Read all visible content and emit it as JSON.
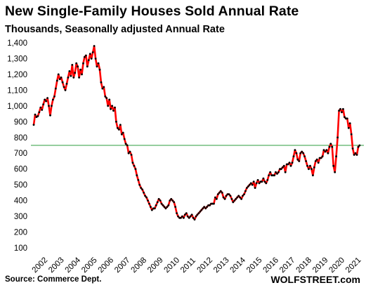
{
  "header": {
    "title": "New Single-Family Houses Sold Annual Rate",
    "subtitle": "Thousands, Seasonally adjusted Annual Rate"
  },
  "footer": {
    "source": "Source: Commerce Dept.",
    "brand": "WOLFSTREET.com"
  },
  "colors": {
    "line": "#ff0000",
    "marker": "#000000",
    "reference_line": "#2e9e3e",
    "background": "#ffffff"
  },
  "chart_data": {
    "type": "line",
    "title": "New Single-Family Houses Sold Annual Rate",
    "subtitle": "Thousands, Seasonally adjusted Annual Rate",
    "xlabel": "",
    "ylabel": "",
    "ylim": [
      100,
      1400
    ],
    "yticks": [
      100,
      200,
      300,
      400,
      500,
      600,
      700,
      800,
      900,
      1000,
      1100,
      1200,
      1300,
      1400
    ],
    "ytick_labels": [
      "100",
      "200",
      "300",
      "400",
      "500",
      "600",
      "700",
      "800",
      "900",
      "1,000",
      "1,100",
      "1,200",
      "1,300",
      "1,400"
    ],
    "xlim": [
      "2002-01",
      "2021-08"
    ],
    "xtick_labels": [
      "2002",
      "2003",
      "2004",
      "2005",
      "2006",
      "2007",
      "2008",
      "2009",
      "2010",
      "2011",
      "2012",
      "2013",
      "2014",
      "2015",
      "2016",
      "2017",
      "2018",
      "2019",
      "2020",
      "2021"
    ],
    "reference_line": {
      "value": 750
    },
    "grid": false,
    "legend": "none",
    "series": [
      {
        "start": "2002-01",
        "frequency": "monthly",
        "values": [
          880,
          945,
          930,
          935,
          960,
          990,
          975,
          1010,
          1040,
          1030,
          1050,
          1000,
          940,
          1000,
          1040,
          1060,
          1110,
          1160,
          1200,
          1170,
          1180,
          1150,
          1120,
          1100,
          1140,
          1180,
          1220,
          1190,
          1260,
          1180,
          1210,
          1270,
          1250,
          1180,
          1230,
          1200,
          1270,
          1310,
          1320,
          1250,
          1290,
          1330,
          1300,
          1340,
          1380,
          1300,
          1250,
          1270,
          1230,
          1150,
          1110,
          1120,
          1060,
          1050,
          1000,
          1040,
          980,
          1000,
          970,
          990,
          900,
          860,
          850,
          880,
          820,
          830,
          790,
          760,
          750,
          700,
          710,
          690,
          640,
          620,
          600,
          560,
          530,
          500,
          480,
          470,
          450,
          430,
          420,
          400,
          380,
          360,
          340,
          350,
          350,
          370,
          390,
          410,
          400,
          380,
          370,
          360,
          350,
          360,
          370,
          400,
          410,
          400,
          390,
          360,
          320,
          300,
          290,
          290,
          300,
          290,
          310,
          320,
          300,
          290,
          300,
          310,
          290,
          280,
          300,
          310,
          320,
          330,
          340,
          350,
          360,
          350,
          360,
          370,
          370,
          380,
          380,
          380,
          420,
          410,
          440,
          450,
          460,
          450,
          420,
          410,
          430,
          440,
          440,
          430,
          410,
          390,
          400,
          410,
          420,
          430,
          420,
          410,
          430,
          440,
          460,
          480,
          490,
          500,
          510,
          500,
          520,
          480,
          510,
          530,
          510,
          520,
          520,
          540,
          520,
          510,
          530,
          560,
          580,
          560,
          560,
          560,
          580,
          570,
          580,
          600,
          600,
          610,
          620,
          580,
          630,
          630,
          640,
          620,
          640,
          680,
          720,
          700,
          660,
          650,
          700,
          710,
          700,
          680,
          650,
          620,
          600,
          620,
          600,
          560,
          610,
          650,
          660,
          640,
          670,
          670,
          680,
          720,
          710,
          720,
          700,
          740,
          760,
          740,
          620,
          580,
          680,
          800,
          970,
          980,
          960,
          980,
          930,
          920,
          920,
          860,
          890,
          820,
          730,
          690,
          700,
          690,
          740,
          750
        ]
      }
    ]
  }
}
